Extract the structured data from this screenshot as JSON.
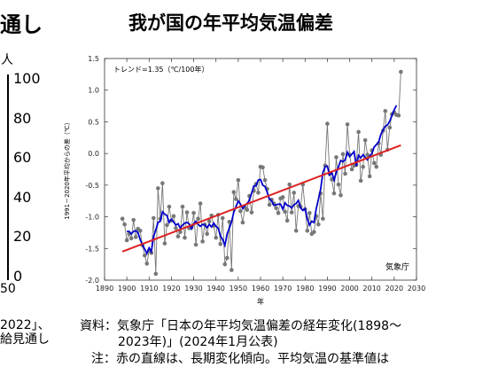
{
  "left_panel": {
    "title_fragment": "通し",
    "unit_fragment": "人",
    "ticks": [
      "100",
      "80",
      "60",
      "40",
      "20",
      "0"
    ],
    "bottom_fragment": "50",
    "footnote_line1": "2022」、",
    "footnote_line2": "給見通し"
  },
  "main_title": "我が国の年平均気温偏差",
  "source_line1": "資料：気象庁「日本の年平均気温偏差の経年変化(1898〜",
  "source_line2": "2023年)」(2024年1月公表)",
  "note_fragment": "注：赤の直線は、長期変化傾向。平均気温の基準値は",
  "colors": {
    "points": "#777777",
    "smoothed": "#0000cc",
    "trend": "#dd2222"
  },
  "chart_data": {
    "type": "line",
    "annotation": "トレンド=1.35（℃/100年）",
    "xlabel": "年",
    "ylabel": "1991－2020年平均からの差（℃）",
    "credit": "気象庁",
    "xlim": [
      1890,
      2030
    ],
    "ylim": [
      -2.0,
      1.5
    ],
    "xticks": [
      1890,
      1900,
      1910,
      1920,
      1930,
      1940,
      1950,
      1960,
      1970,
      1980,
      1990,
      2000,
      2010,
      2020,
      2030
    ],
    "yticks": [
      1.5,
      1.0,
      0.5,
      0.0,
      -0.5,
      -1.0,
      -1.5,
      -2.0
    ],
    "series": [
      {
        "kind": "annual",
        "x": [
          1898,
          1899,
          1900,
          1901,
          1902,
          1903,
          1904,
          1905,
          1906,
          1907,
          1908,
          1909,
          1910,
          1911,
          1912,
          1913,
          1914,
          1915,
          1916,
          1917,
          1918,
          1919,
          1920,
          1921,
          1922,
          1923,
          1924,
          1925,
          1926,
          1927,
          1928,
          1929,
          1930,
          1931,
          1932,
          1933,
          1934,
          1935,
          1936,
          1937,
          1938,
          1939,
          1940,
          1941,
          1942,
          1943,
          1944,
          1945,
          1946,
          1947,
          1948,
          1949,
          1950,
          1951,
          1952,
          1953,
          1954,
          1955,
          1956,
          1957,
          1958,
          1959,
          1960,
          1961,
          1962,
          1963,
          1964,
          1965,
          1966,
          1967,
          1968,
          1969,
          1970,
          1971,
          1972,
          1973,
          1974,
          1975,
          1976,
          1977,
          1978,
          1979,
          1980,
          1981,
          1982,
          1983,
          1984,
          1985,
          1986,
          1987,
          1988,
          1989,
          1990,
          1991,
          1992,
          1993,
          1994,
          1995,
          1996,
          1997,
          1998,
          1999,
          2000,
          2001,
          2002,
          2003,
          2004,
          2005,
          2006,
          2007,
          2008,
          2009,
          2010,
          2011,
          2012,
          2013,
          2014,
          2015,
          2016,
          2017,
          2018,
          2019,
          2020,
          2021,
          2022,
          2023
        ],
        "y": [
          -1.03,
          -1.12,
          -1.37,
          -1.27,
          -1.34,
          -1.05,
          -1.32,
          -1.19,
          -1.22,
          -1.45,
          -1.61,
          -1.74,
          -1.53,
          -1.57,
          -1.02,
          -1.9,
          -0.55,
          -1.03,
          -0.47,
          -1.42,
          -1.13,
          -0.84,
          -1.06,
          -0.99,
          -1.18,
          -1.31,
          -1.24,
          -0.84,
          -1.33,
          -0.93,
          -1.18,
          -1.17,
          -0.94,
          -1.44,
          -1.03,
          -0.79,
          -1.39,
          -1.12,
          -1.27,
          -1.07,
          -0.98,
          -1.14,
          -1.33,
          -0.97,
          -1.43,
          -1.02,
          -1.75,
          -1.65,
          -1.08,
          -1.84,
          -0.61,
          -0.72,
          -0.42,
          -0.91,
          -1.09,
          -0.85,
          -0.89,
          -0.67,
          -0.93,
          -0.59,
          -0.48,
          -0.62,
          -0.21,
          -0.22,
          -0.42,
          -0.56,
          -0.81,
          -0.73,
          -0.79,
          -0.86,
          -0.94,
          -0.71,
          -0.69,
          -0.92,
          -1.06,
          -0.49,
          -0.93,
          -0.62,
          -1.22,
          -0.83,
          -0.84,
          -0.49,
          -0.88,
          -1.22,
          -0.94,
          -1.27,
          -1.24,
          -0.99,
          -1.12,
          -0.63,
          -1.03,
          -0.19,
          0.47,
          -0.32,
          -0.41,
          -0.63,
          -0.06,
          -0.49,
          -0.66,
          -0.01,
          -0.32,
          0.46,
          -0.02,
          -0.25,
          -0.19,
          -0.18,
          0.34,
          -0.43,
          -0.21,
          0.21,
          -0.02,
          -0.36,
          0.05,
          -0.15,
          -0.21,
          0.16,
          -0.02,
          0.36,
          0.67,
          0.06,
          0.41,
          0.62,
          0.65,
          0.61,
          0.6,
          1.29
        ]
      },
      {
        "kind": "5yr-mean",
        "x": [
          1900,
          1901,
          1902,
          1903,
          1904,
          1905,
          1906,
          1907,
          1908,
          1909,
          1910,
          1911,
          1912,
          1913,
          1914,
          1915,
          1916,
          1917,
          1918,
          1919,
          1920,
          1921,
          1922,
          1923,
          1924,
          1925,
          1926,
          1927,
          1928,
          1929,
          1930,
          1931,
          1932,
          1933,
          1934,
          1935,
          1936,
          1937,
          1938,
          1939,
          1940,
          1941,
          1942,
          1943,
          1944,
          1945,
          1946,
          1947,
          1948,
          1949,
          1950,
          1951,
          1952,
          1953,
          1954,
          1955,
          1956,
          1957,
          1958,
          1959,
          1960,
          1961,
          1962,
          1963,
          1964,
          1965,
          1966,
          1967,
          1968,
          1969,
          1970,
          1971,
          1972,
          1973,
          1974,
          1975,
          1976,
          1977,
          1978,
          1979,
          1980,
          1981,
          1982,
          1983,
          1984,
          1985,
          1986,
          1987,
          1988,
          1989,
          1990,
          1991,
          1992,
          1993,
          1994,
          1995,
          1996,
          1997,
          1998,
          1999,
          2000,
          2001,
          2002,
          2003,
          2004,
          2005,
          2006,
          2007,
          2008,
          2009,
          2010,
          2011,
          2012,
          2013,
          2014,
          2015,
          2016,
          2017,
          2018,
          2019,
          2020,
          2021
        ],
        "y": [
          -1.23,
          -1.23,
          -1.27,
          -1.23,
          -1.22,
          -1.25,
          -1.36,
          -1.44,
          -1.51,
          -1.58,
          -1.49,
          -1.55,
          -1.31,
          -1.21,
          -1.09,
          -1.07,
          -0.92,
          -0.96,
          -0.98,
          -1.09,
          -1.04,
          -1.08,
          -1.13,
          -1.11,
          -1.18,
          -1.13,
          -1.1,
          -1.09,
          -1.11,
          -1.19,
          -1.11,
          -1.07,
          -1.12,
          -1.15,
          -1.12,
          -1.13,
          -1.17,
          -1.12,
          -1.16,
          -1.1,
          -1.15,
          -1.18,
          -1.3,
          -1.36,
          -1.45,
          -1.27,
          -1.18,
          -1.08,
          -0.93,
          -0.84,
          -0.75,
          -0.8,
          -0.87,
          -0.82,
          -0.79,
          -0.74,
          -0.63,
          -0.51,
          -0.51,
          -0.42,
          -0.41,
          -0.5,
          -0.52,
          -0.61,
          -0.72,
          -0.75,
          -0.82,
          -0.81,
          -0.8,
          -0.8,
          -0.88,
          -0.78,
          -0.82,
          -0.83,
          -0.86,
          -0.81,
          -0.79,
          -0.74,
          -0.86,
          -0.9,
          -0.87,
          -1.03,
          -1.13,
          -1.07,
          -1.09,
          -0.87,
          -0.72,
          -0.56,
          -0.3,
          -0.21,
          -0.2,
          -0.34,
          -0.3,
          -0.42,
          -0.3,
          -0.21,
          -0.11,
          -0.13,
          -0.1,
          0.02,
          -0.05,
          -0.01,
          0.03,
          -0.2,
          -0.03,
          -0.07,
          -0.02,
          -0.06,
          -0.1,
          -0.04,
          0.0,
          0.1,
          0.14,
          0.18,
          0.3,
          0.37,
          0.43,
          0.45,
          0.51,
          0.6,
          0.69,
          0.76
        ]
      },
      {
        "kind": "trend",
        "x": [
          1898,
          2023
        ],
        "y": [
          -1.55,
          0.13
        ]
      }
    ]
  }
}
